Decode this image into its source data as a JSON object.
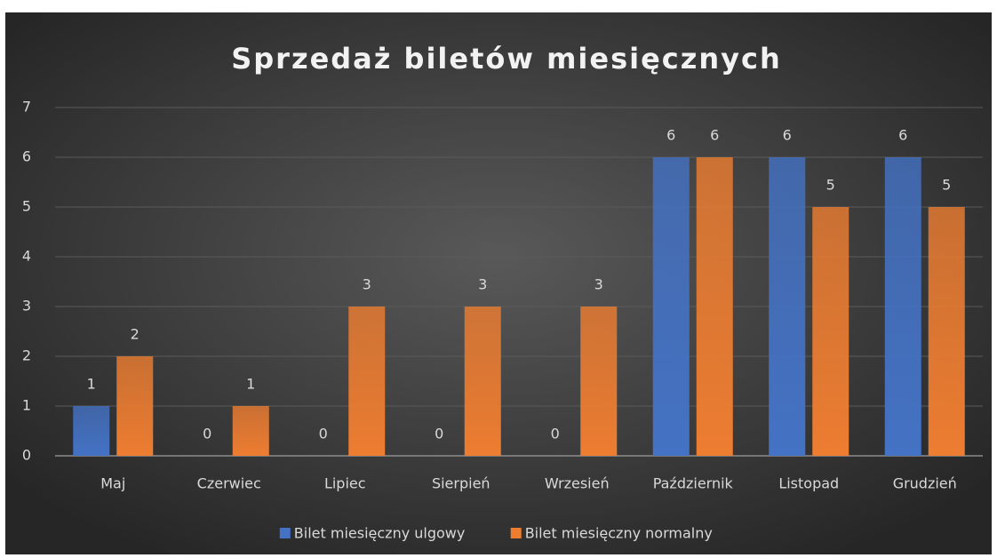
{
  "chart_data": {
    "type": "bar",
    "title": "Sprzedaż biletów miesięcznych",
    "categories": [
      "Maj",
      "Czerwiec",
      "Lipiec",
      "Sierpień",
      "Wrzesień",
      "Październik",
      "Listopad",
      "Grudzień"
    ],
    "series": [
      {
        "name": "Bilet miesięczny ulgowy",
        "color": "#4472c4",
        "values": [
          1,
          0,
          0,
          0,
          0,
          6,
          6,
          6
        ]
      },
      {
        "name": "Bilet miesięczny normalny",
        "color": "#ed7d31",
        "values": [
          2,
          1,
          3,
          3,
          3,
          6,
          5,
          5
        ]
      }
    ],
    "ylim": [
      0,
      7
    ],
    "yticks": [
      0,
      1,
      2,
      3,
      4,
      5,
      6,
      7
    ],
    "grid": true,
    "legend": "bottom"
  }
}
